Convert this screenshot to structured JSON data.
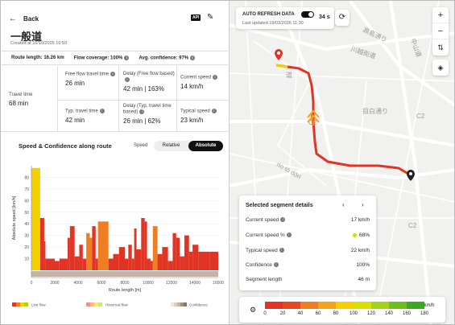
{
  "header": {
    "back_label": "Back",
    "api_label": "API",
    "title": "一般道",
    "created": "Created at 16/10/2025 10:59"
  },
  "summary": {
    "route_length": "Route length: 16.26 km",
    "flow_coverage": "Flow coverage: 100%",
    "avg_confidence": "Avg. confidence: 97%"
  },
  "stats": {
    "travel_time_label": "Travel time",
    "travel_time_value": "68 min",
    "free_flow_label": "Free flow travel time",
    "free_flow_value": "26 min",
    "delay_free_flow_label": "Delay (Free flow based)",
    "delay_free_flow_value": "42 min | 163%",
    "current_speed_label": "Current speed",
    "current_speed_value": "14 km/h",
    "typ_travel_label": "Typ. travel time",
    "typ_travel_value": "42 min",
    "delay_typ_label": "Delay (Typ. travel time based)",
    "delay_typ_value": "26 min | 62%",
    "typical_speed_label": "Typical speed",
    "typical_speed_value": "23 km/h"
  },
  "chart_section": {
    "title": "Speed & Confidence along route",
    "speed_label": "Speed",
    "toggle_relative": "Relative",
    "toggle_absolute": "Absolute",
    "legend_live": "Live flow",
    "legend_historical": "Historical flow",
    "legend_confidence": "Confidence"
  },
  "chart_data": {
    "type": "bar",
    "xlabel": "Route length [m]",
    "ylabel": "Absolute speed [km/h]",
    "xlim": [
      0,
      16000
    ],
    "ylim": [
      0,
      90
    ],
    "x_ticks": [
      0,
      2000,
      4000,
      6000,
      8000,
      10000,
      12000,
      14000,
      16000
    ],
    "y_ticks": [
      10,
      20,
      30,
      40,
      50,
      60,
      70,
      80
    ],
    "bars": [
      {
        "x0": 0,
        "x1": 750,
        "v": 88,
        "c": "#f5d000"
      },
      {
        "x0": 750,
        "x1": 1100,
        "v": 45,
        "c": "#e23424"
      },
      {
        "x0": 1100,
        "x1": 1200,
        "v": 25,
        "c": "#e23424"
      },
      {
        "x0": 1200,
        "x1": 2000,
        "v": 10,
        "c": "#e23424"
      },
      {
        "x0": 2000,
        "x1": 2400,
        "v": 8,
        "c": "#e23424"
      },
      {
        "x0": 2400,
        "x1": 3100,
        "v": 10,
        "c": "#e23424"
      },
      {
        "x0": 3100,
        "x1": 3300,
        "v": 28,
        "c": "#e23424"
      },
      {
        "x0": 3300,
        "x1": 3700,
        "v": 38,
        "c": "#e23424"
      },
      {
        "x0": 3700,
        "x1": 4100,
        "v": 12,
        "c": "#e23424"
      },
      {
        "x0": 4100,
        "x1": 4400,
        "v": 22,
        "c": "#e23424"
      },
      {
        "x0": 4400,
        "x1": 4700,
        "v": 10,
        "c": "#e23424"
      },
      {
        "x0": 4700,
        "x1": 5000,
        "v": 32,
        "c": "#ef7d22"
      },
      {
        "x0": 5000,
        "x1": 5200,
        "v": 28,
        "c": "#ef7d22"
      },
      {
        "x0": 5200,
        "x1": 5500,
        "v": 38,
        "c": "#e23424"
      },
      {
        "x0": 5500,
        "x1": 5700,
        "v": 10,
        "c": "#e23424"
      },
      {
        "x0": 5700,
        "x1": 6600,
        "v": 42,
        "c": "#ef7d22"
      },
      {
        "x0": 6600,
        "x1": 7000,
        "v": 10,
        "c": "#e23424"
      },
      {
        "x0": 7000,
        "x1": 7500,
        "v": 14,
        "c": "#e23424"
      },
      {
        "x0": 7500,
        "x1": 8000,
        "v": 20,
        "c": "#e23424"
      },
      {
        "x0": 8000,
        "x1": 8300,
        "v": 10,
        "c": "#e23424"
      },
      {
        "x0": 8300,
        "x1": 8600,
        "v": 22,
        "c": "#e23424"
      },
      {
        "x0": 8600,
        "x1": 8800,
        "v": 10,
        "c": "#e23424"
      },
      {
        "x0": 8800,
        "x1": 9000,
        "v": 36,
        "c": "#e23424"
      },
      {
        "x0": 9000,
        "x1": 9400,
        "v": 18,
        "c": "#e23424"
      },
      {
        "x0": 9400,
        "x1": 9700,
        "v": 45,
        "c": "#e23424"
      },
      {
        "x0": 9700,
        "x1": 9900,
        "v": 42,
        "c": "#e23424"
      },
      {
        "x0": 9900,
        "x1": 10200,
        "v": 10,
        "c": "#e23424"
      },
      {
        "x0": 10200,
        "x1": 10400,
        "v": 8,
        "c": "#e23424"
      },
      {
        "x0": 10400,
        "x1": 10800,
        "v": 38,
        "c": "#ef7d22"
      },
      {
        "x0": 10800,
        "x1": 11200,
        "v": 14,
        "c": "#e23424"
      },
      {
        "x0": 11200,
        "x1": 11700,
        "v": 20,
        "c": "#e23424"
      },
      {
        "x0": 11700,
        "x1": 12100,
        "v": 8,
        "c": "#e23424"
      },
      {
        "x0": 12100,
        "x1": 12400,
        "v": 32,
        "c": "#e23424"
      },
      {
        "x0": 12400,
        "x1": 12700,
        "v": 28,
        "c": "#e23424"
      },
      {
        "x0": 12700,
        "x1": 13100,
        "v": 12,
        "c": "#e23424"
      },
      {
        "x0": 13100,
        "x1": 13500,
        "v": 30,
        "c": "#e23424"
      },
      {
        "x0": 13500,
        "x1": 13800,
        "v": 16,
        "c": "#e23424"
      },
      {
        "x0": 13800,
        "x1": 14300,
        "v": 22,
        "c": "#e23424"
      },
      {
        "x0": 14300,
        "x1": 15300,
        "v": 16,
        "c": "#e23424"
      },
      {
        "x0": 15300,
        "x1": 16000,
        "v": 16,
        "c": "#e23424"
      }
    ],
    "bar_colors": {
      "fast": "#f5d000",
      "medium": "#ef7d22",
      "slow": "#e23424"
    }
  },
  "map": {
    "auto_refresh_label": "AUTO REFRESH DATA",
    "last_updated": "Last updated 19/03/2026 11:30",
    "seconds": "34 s",
    "street_labels": [
      "高島通り",
      "中山道",
      "川越街道",
      "目白通り",
      "C2",
      "C2",
      "C2",
      "no tō dōri",
      "道"
    ]
  },
  "segment": {
    "title": "Selected segment details",
    "current_speed_label": "Current speed",
    "current_speed_value": "17 km/h",
    "current_speed_pct_label": "Current speed %",
    "current_speed_pct_value": "68%",
    "typical_speed_label": "Typical speed",
    "typical_speed_value": "22 km/h",
    "confidence_label": "Confidence",
    "confidence_value": "100%",
    "segment_length_label": "Segment length",
    "segment_length_value": "46 m"
  },
  "speed_legend": {
    "ticks": [
      "0",
      "20",
      "40",
      "60",
      "80",
      "100",
      "120",
      "140",
      "160",
      "180"
    ],
    "unit": "km/h",
    "colors": [
      "#e23424",
      "#e8461f",
      "#ef7d22",
      "#f4a31d",
      "#f5d000",
      "#d8e000",
      "#a6d21a",
      "#6cbf1e",
      "#3aa824"
    ]
  }
}
